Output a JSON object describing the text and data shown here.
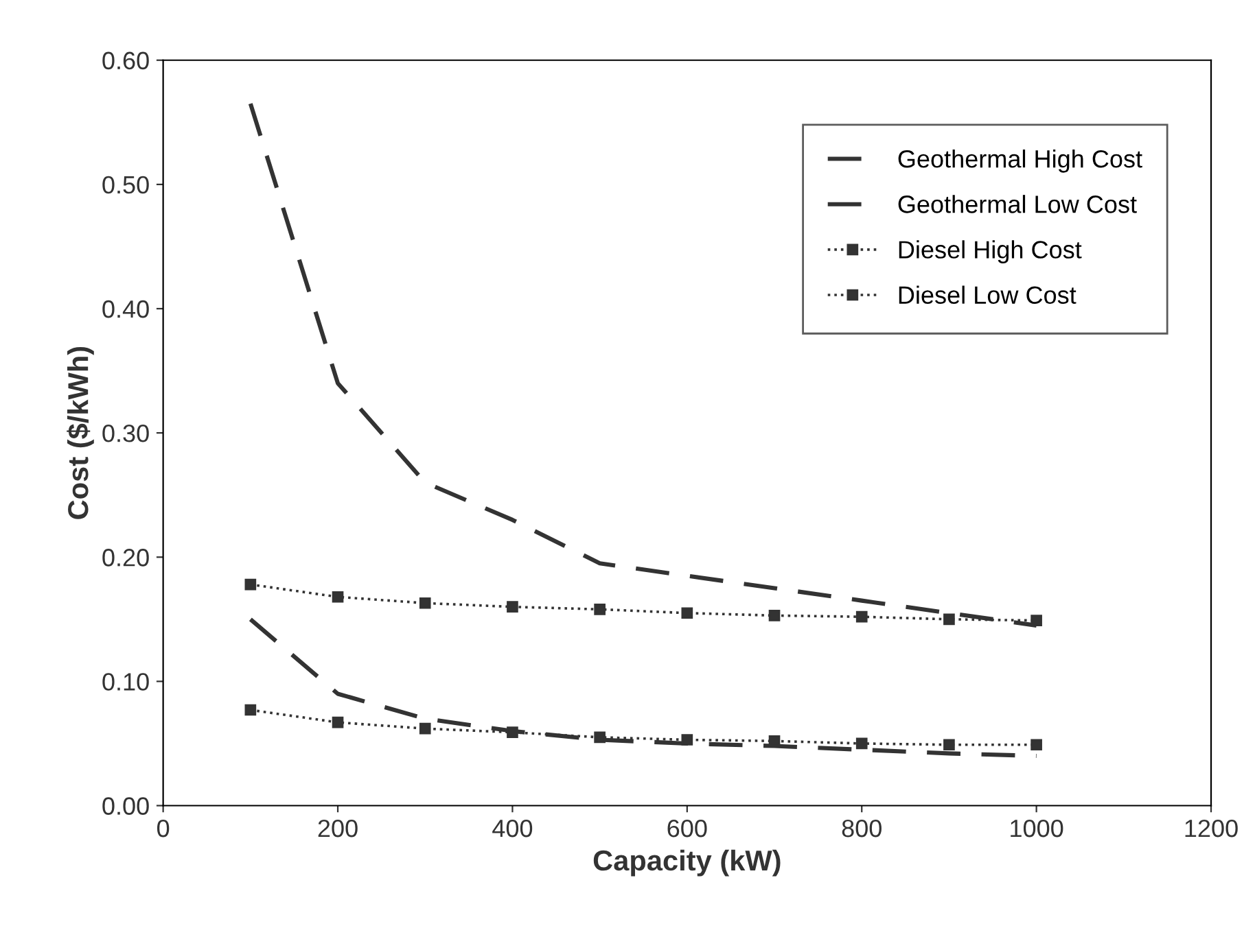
{
  "chart_data": {
    "type": "line",
    "xlabel": "Capacity (kW)",
    "ylabel": "Cost ($/kWh)",
    "x": [
      100,
      200,
      300,
      400,
      500,
      600,
      700,
      800,
      900,
      1000
    ],
    "xlim": [
      0,
      1200
    ],
    "xticks": [
      0,
      200,
      400,
      600,
      800,
      1000,
      1200
    ],
    "ylim": [
      0,
      0.6
    ],
    "yticks": [
      {
        "value": 0,
        "label": "0.00"
      },
      {
        "value": 0.1,
        "label": "0.10"
      },
      {
        "value": 0.2,
        "label": "0.20"
      },
      {
        "value": 0.3,
        "label": "0.30"
      },
      {
        "value": 0.4,
        "label": "0.40"
      },
      {
        "value": 0.5,
        "label": "0.50"
      },
      {
        "value": 0.6,
        "label": "0.60"
      }
    ],
    "grid": false,
    "legend": "top right",
    "series": [
      {
        "name": "Geothermal High Cost",
        "color": "#333333",
        "line_style": "dashed",
        "marker": "none",
        "values": [
          0.565,
          0.34,
          0.26,
          0.23,
          0.195,
          0.185,
          0.175,
          0.165,
          0.155,
          0.145
        ]
      },
      {
        "name": "Geothermal Low Cost",
        "color": "#333333",
        "line_style": "dashed",
        "marker": "none",
        "values": [
          0.15,
          0.09,
          0.07,
          0.06,
          0.053,
          0.05,
          0.048,
          0.045,
          0.042,
          0.04
        ]
      },
      {
        "name": "Diesel High Cost",
        "color": "#333333",
        "line_style": "dotted",
        "marker": "square",
        "values": [
          0.178,
          0.168,
          0.163,
          0.16,
          0.158,
          0.155,
          0.153,
          0.152,
          0.15,
          0.149
        ]
      },
      {
        "name": "Diesel Low Cost",
        "color": "#333333",
        "line_style": "dotted",
        "marker": "square",
        "values": [
          0.077,
          0.067,
          0.062,
          0.059,
          0.055,
          0.053,
          0.052,
          0.05,
          0.049,
          0.049
        ]
      }
    ]
  }
}
